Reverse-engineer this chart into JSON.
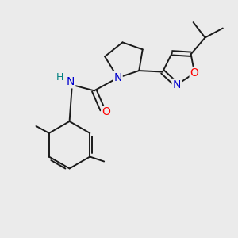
{
  "bg_color": "#ebebeb",
  "atom_colors": {
    "C": "#000000",
    "N": "#0000cd",
    "O": "#ff0000",
    "H": "#008080"
  },
  "bond_color": "#1a1a1a",
  "bond_width": 1.4,
  "figsize": [
    3.0,
    3.0
  ],
  "dpi": 100
}
